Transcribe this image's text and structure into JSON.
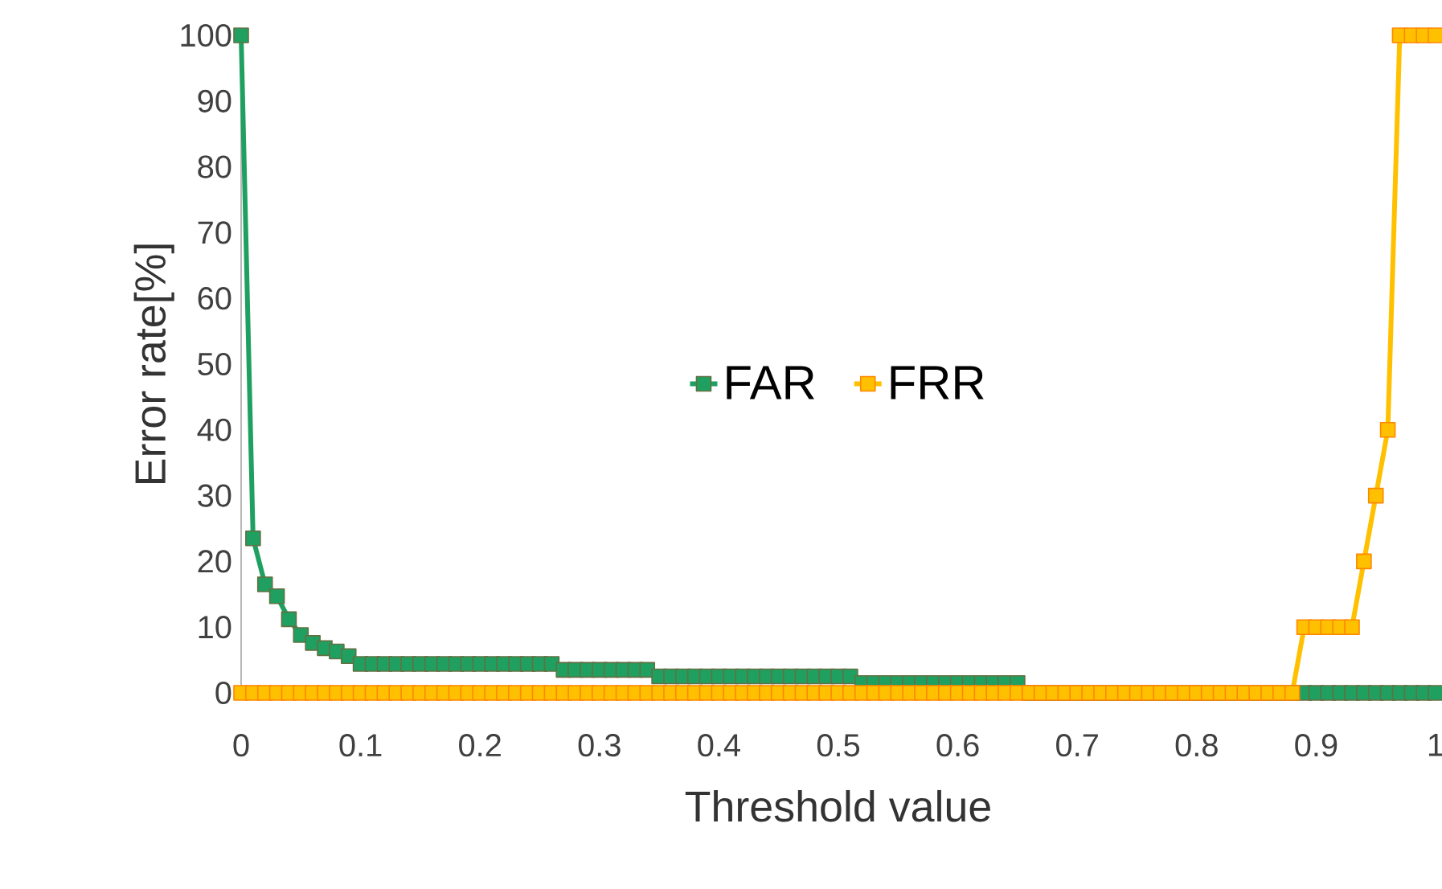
{
  "chart_data": {
    "type": "line",
    "xlabel": "Threshold value",
    "ylabel": "Error rate[%]",
    "x": [
      0,
      0.01,
      0.02,
      0.03,
      0.04,
      0.05,
      0.06,
      0.07,
      0.08,
      0.09,
      0.1,
      0.11,
      0.12,
      0.13,
      0.14,
      0.15,
      0.16,
      0.17,
      0.18,
      0.19,
      0.2,
      0.21,
      0.22,
      0.23,
      0.24,
      0.25,
      0.26,
      0.27,
      0.28,
      0.29,
      0.3,
      0.31,
      0.32,
      0.33,
      0.34,
      0.35,
      0.36,
      0.37,
      0.38,
      0.39,
      0.4,
      0.41,
      0.42,
      0.43,
      0.44,
      0.45,
      0.46,
      0.47,
      0.48,
      0.49,
      0.5,
      0.51,
      0.52,
      0.53,
      0.54,
      0.55,
      0.56,
      0.57,
      0.58,
      0.59,
      0.6,
      0.61,
      0.62,
      0.63,
      0.64,
      0.65,
      0.66,
      0.67,
      0.68,
      0.69,
      0.7,
      0.71,
      0.72,
      0.73,
      0.74,
      0.75,
      0.76,
      0.77,
      0.78,
      0.79,
      0.8,
      0.81,
      0.82,
      0.83,
      0.84,
      0.85,
      0.86,
      0.87,
      0.88,
      0.89,
      0.9,
      0.91,
      0.92,
      0.93,
      0.94,
      0.95,
      0.96,
      0.97,
      0.98,
      0.99,
      1
    ],
    "series": [
      {
        "name": "FAR",
        "color": "#1fa060",
        "values": [
          100,
          23.5,
          16.5,
          14.7,
          11.2,
          8.8,
          7.6,
          6.8,
          6.3,
          5.6,
          4.4,
          4.4,
          4.4,
          4.4,
          4.4,
          4.4,
          4.4,
          4.4,
          4.4,
          4.4,
          4.4,
          4.4,
          4.4,
          4.4,
          4.4,
          4.4,
          4.4,
          3.5,
          3.5,
          3.5,
          3.5,
          3.5,
          3.5,
          3.5,
          3.5,
          2.5,
          2.5,
          2.5,
          2.5,
          2.5,
          2.5,
          2.5,
          2.5,
          2.5,
          2.5,
          2.5,
          2.5,
          2.5,
          2.5,
          2.5,
          2.5,
          2.5,
          1.5,
          1.5,
          1.5,
          1.5,
          1.5,
          1.5,
          1.5,
          1.5,
          1.5,
          1.5,
          1.5,
          1.5,
          1.5,
          1.5,
          0,
          0,
          0,
          0,
          0,
          0,
          0,
          0,
          0,
          0,
          0,
          0,
          0,
          0,
          0,
          0,
          0,
          0,
          0,
          0,
          0,
          0,
          0,
          0,
          0,
          0,
          0,
          0,
          0,
          0,
          0,
          0,
          0,
          0,
          0
        ]
      },
      {
        "name": "FRR",
        "color": "#ffc000",
        "values": [
          0,
          0,
          0,
          0,
          0,
          0,
          0,
          0,
          0,
          0,
          0,
          0,
          0,
          0,
          0,
          0,
          0,
          0,
          0,
          0,
          0,
          0,
          0,
          0,
          0,
          0,
          0,
          0,
          0,
          0,
          0,
          0,
          0,
          0,
          0,
          0,
          0,
          0,
          0,
          0,
          0,
          0,
          0,
          0,
          0,
          0,
          0,
          0,
          0,
          0,
          0,
          0,
          0,
          0,
          0,
          0,
          0,
          0,
          0,
          0,
          0,
          0,
          0,
          0,
          0,
          0,
          0,
          0,
          0,
          0,
          0,
          0,
          0,
          0,
          0,
          0,
          0,
          0,
          0,
          0,
          0,
          0,
          0,
          0,
          0,
          0,
          0,
          0,
          0,
          10,
          10,
          10,
          10,
          10,
          20,
          30,
          40,
          100,
          100,
          100,
          100
        ]
      }
    ],
    "xlim": [
      0,
      1
    ],
    "ylim": [
      0,
      100
    ],
    "xticks": [
      0,
      0.1,
      0.2,
      0.3,
      0.4,
      0.5,
      0.6,
      0.7,
      0.8,
      0.9,
      1
    ],
    "yticks": [
      0,
      10,
      20,
      30,
      40,
      50,
      60,
      70,
      80,
      90,
      100
    ],
    "grid": false,
    "legend": "center",
    "marker": "square",
    "line_style": "solid"
  }
}
